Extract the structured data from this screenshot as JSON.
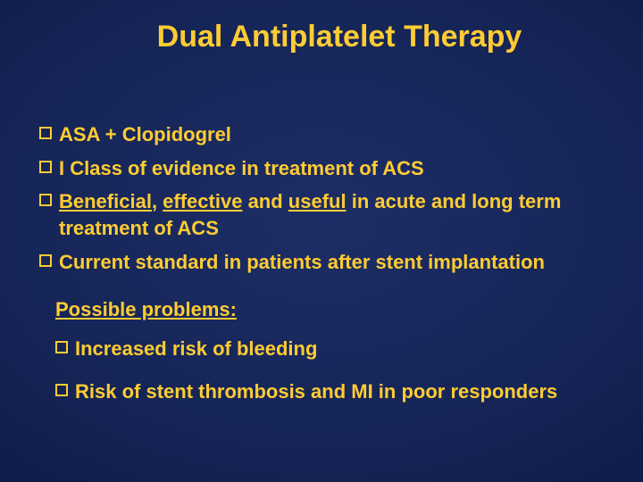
{
  "title": "Dual Antiplatelet Therapy",
  "bullets": {
    "b1": "ASA + Clopidogrel",
    "b2": "I Class of evidence in treatment of ACS",
    "b3_pre": " ",
    "b3_u1": "Beneficial",
    "b3_mid1": ", ",
    "b3_u2": "effective",
    "b3_mid2": " and ",
    "b3_u3": "useful",
    "b3_post": " in acute and long term treatment of ACS",
    "b4": "Current standard in patients after stent implantation",
    "subhead": "Possible problems:",
    "b5": "Increased risk of bleeding",
    "b6": "Risk of stent thrombosis and MI in poor responders"
  },
  "colors": {
    "accent": "#ffcc33",
    "bg_center": "#1d2e66",
    "bg_edge": "#081230"
  }
}
